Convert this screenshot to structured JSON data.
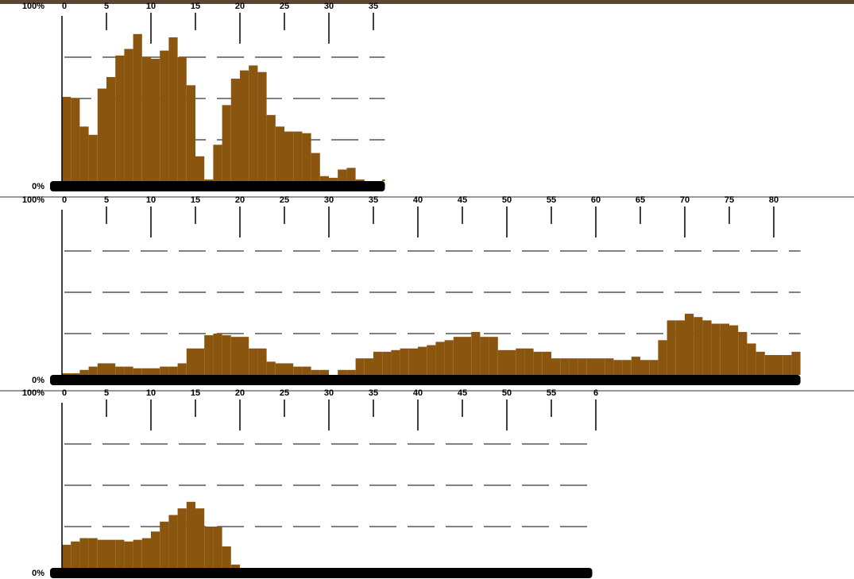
{
  "chart_data": [
    {
      "type": "histogram",
      "color": "#8a560f",
      "bins": [
        0,
        1,
        2,
        3,
        4,
        5,
        6,
        7,
        8,
        9,
        10,
        11,
        12,
        13,
        14,
        15,
        16,
        17,
        18,
        19,
        20,
        21,
        22,
        23,
        24,
        25,
        26,
        27,
        28,
        29,
        30,
        31,
        32,
        33,
        34,
        35,
        36,
        37
      ],
      "values": [
        51,
        50,
        33,
        28,
        56,
        63,
        76,
        80,
        89,
        75,
        74,
        79,
        87,
        75,
        58,
        15,
        1,
        22,
        46,
        62,
        67,
        70,
        66,
        40,
        33,
        30,
        30,
        29,
        17,
        3,
        2,
        7,
        8,
        1,
        0,
        0,
        1
      ],
      "xlim": [
        0,
        36.3
      ],
      "xticks": [
        0,
        5,
        10,
        15,
        20,
        25,
        30,
        35
      ],
      "ylim": [
        0,
        100
      ],
      "yticks": [
        {
          "value": 0,
          "label": "0%"
        },
        {
          "value": 100,
          "label": "100%"
        }
      ],
      "ygrid": [
        25,
        50,
        75
      ]
    },
    {
      "type": "histogram",
      "color": "#8a560f",
      "bins": [
        0,
        1,
        2,
        3,
        4,
        5,
        6,
        7,
        8,
        9,
        10,
        11,
        12,
        13,
        14,
        15,
        16,
        17,
        18,
        19,
        20,
        21,
        22,
        23,
        24,
        25,
        26,
        27,
        28,
        29,
        30,
        31,
        32,
        33,
        34,
        35,
        36,
        37,
        38,
        39,
        40,
        41,
        42,
        43,
        44,
        45,
        46,
        47,
        48,
        49,
        50,
        51,
        52,
        53,
        54,
        55,
        56,
        57,
        58,
        59,
        60,
        61,
        62,
        63,
        64,
        65,
        66,
        67,
        68,
        69,
        70,
        71,
        72,
        73,
        74,
        75,
        76,
        77,
        78,
        79,
        80,
        81,
        82,
        83
      ],
      "values": [
        1,
        1,
        3,
        5,
        7,
        7,
        5,
        5,
        4,
        4,
        4,
        5,
        5,
        7,
        16,
        16,
        24,
        25,
        24,
        23,
        23,
        16,
        16,
        8,
        7,
        7,
        5,
        5,
        3,
        3,
        0,
        3,
        3,
        10,
        10,
        14,
        14,
        15,
        16,
        16,
        17,
        18,
        20,
        21,
        23,
        23,
        26,
        23,
        23,
        15,
        15,
        16,
        16,
        14,
        14,
        10,
        10,
        10,
        10,
        10,
        10,
        10,
        9,
        9,
        11,
        9,
        9,
        21,
        33,
        33,
        37,
        35,
        33,
        31,
        31,
        30,
        26,
        19,
        14,
        12,
        12,
        12,
        14
      ],
      "xlim": [
        0,
        83
      ],
      "xticks": [
        0,
        5,
        10,
        15,
        20,
        25,
        30,
        35,
        40,
        45,
        50,
        55,
        60,
        65,
        70,
        75,
        80
      ],
      "ylim": [
        0,
        100
      ],
      "yticks": [
        {
          "value": 0,
          "label": "0%"
        },
        {
          "value": 100,
          "label": "100%"
        }
      ],
      "ygrid": [
        25,
        50,
        75
      ]
    },
    {
      "type": "histogram",
      "color": "#8a560f",
      "bins": [
        0,
        1,
        2,
        3,
        4,
        5,
        6,
        7,
        8,
        9,
        10,
        11,
        12,
        13,
        14,
        15,
        16,
        17,
        18,
        19,
        20
      ],
      "values": [
        14,
        16,
        18,
        18,
        17,
        17,
        17,
        16,
        17,
        18,
        22,
        28,
        32,
        36,
        40,
        36,
        25,
        25,
        13,
        2
      ],
      "xlim": [
        0,
        59.6
      ],
      "xticks": [
        0,
        5,
        10,
        15,
        20,
        25,
        30,
        35,
        40,
        45,
        50,
        55,
        {
          "value": 60,
          "label": "6"
        }
      ],
      "ylim": [
        0,
        100
      ],
      "yticks": [
        {
          "value": 0,
          "label": "0%"
        },
        {
          "value": 100,
          "label": "100%"
        }
      ],
      "ygrid": [
        25,
        50,
        75
      ]
    }
  ]
}
